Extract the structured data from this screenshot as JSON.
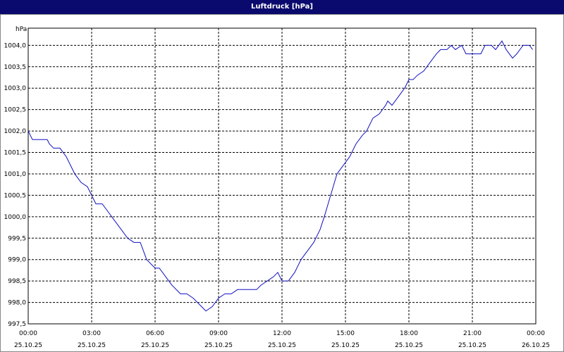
{
  "chart_data": {
    "type": "line",
    "title": "Luftdruck [hPa]",
    "y_label": "hPa",
    "x": [
      0,
      0.2,
      0.5,
      0.9,
      1.0,
      1.2,
      1.5,
      1.8,
      2.0,
      2.2,
      2.5,
      2.8,
      3.0,
      3.2,
      3.5,
      3.8,
      4.1,
      4.4,
      4.7,
      5.0,
      5.3,
      5.6,
      6.0,
      6.2,
      6.5,
      6.8,
      7.2,
      7.5,
      7.8,
      8.0,
      8.2,
      8.4,
      8.7,
      9.0,
      9.3,
      9.6,
      9.9,
      10.2,
      10.5,
      10.8,
      11.0,
      11.3,
      11.6,
      11.8,
      12.0,
      12.3,
      12.6,
      12.9,
      13.2,
      13.5,
      13.8,
      14.0,
      14.3,
      14.6,
      14.9,
      15.2,
      15.5,
      15.8,
      16.0,
      16.3,
      16.6,
      16.9,
      17.0,
      17.2,
      17.5,
      17.8,
      18.0,
      18.2,
      18.4,
      18.7,
      19.0,
      19.3,
      19.5,
      19.8,
      20.0,
      20.2,
      20.5,
      20.7,
      21.0,
      21.4,
      21.6,
      21.9,
      22.1,
      22.4,
      22.6,
      22.9,
      23.1,
      23.4,
      23.7,
      23.85
    ],
    "series": [
      {
        "name": "Luftdruck",
        "color": "#1010c0",
        "values": [
          1002.0,
          1001.8,
          1001.8,
          1001.8,
          1001.7,
          1001.6,
          1001.6,
          1001.4,
          1001.2,
          1001.0,
          1000.8,
          1000.7,
          1000.5,
          1000.3,
          1000.3,
          1000.1,
          999.9,
          999.7,
          999.5,
          999.4,
          999.4,
          999.0,
          998.8,
          998.8,
          998.6,
          998.4,
          998.2,
          998.2,
          998.1,
          998.0,
          997.9,
          997.8,
          997.9,
          998.1,
          998.2,
          998.2,
          998.3,
          998.3,
          998.3,
          998.3,
          998.4,
          998.5,
          998.6,
          998.7,
          998.5,
          998.5,
          998.7,
          999.0,
          999.2,
          999.4,
          999.7,
          1000.0,
          1000.5,
          1001.0,
          1001.2,
          1001.4,
          1001.7,
          1001.9,
          1002.0,
          1002.3,
          1002.4,
          1002.6,
          1002.7,
          1002.6,
          1002.8,
          1003.0,
          1003.2,
          1003.2,
          1003.3,
          1003.4,
          1003.6,
          1003.8,
          1003.9,
          1003.9,
          1004.0,
          1003.9,
          1004.0,
          1003.8,
          1003.8,
          1003.8,
          1004.0,
          1004.0,
          1003.9,
          1004.1,
          1003.9,
          1003.7,
          1003.8,
          1004.0,
          1004.0,
          1003.9
        ]
      }
    ],
    "xlim": [
      0,
      24
    ],
    "xticks": [
      {
        "value": 0,
        "label": "00:00"
      },
      {
        "value": 3,
        "label": "03:00"
      },
      {
        "value": 6,
        "label": "06:00"
      },
      {
        "value": 9,
        "label": "09:00"
      },
      {
        "value": 12,
        "label": "12:00"
      },
      {
        "value": 15,
        "label": "15:00"
      },
      {
        "value": 18,
        "label": "18:00"
      },
      {
        "value": 21,
        "label": "21:00"
      },
      {
        "value": 24,
        "label": "00:00"
      }
    ],
    "xtick_dates": [
      "25.10.25",
      "25.10.25",
      "25.10.25",
      "25.10.25",
      "25.10.25",
      "25.10.25",
      "25.10.25",
      "25.10.25",
      "26.10.25"
    ],
    "ylim": [
      997.5,
      1004.4
    ],
    "yticks": [
      {
        "value": 997.5,
        "label": "997,5"
      },
      {
        "value": 998.0,
        "label": "998,0"
      },
      {
        "value": 998.5,
        "label": "998,5"
      },
      {
        "value": 999.0,
        "label": "999,0"
      },
      {
        "value": 999.5,
        "label": "999,5"
      },
      {
        "value": 1000.0,
        "label": "1000,0"
      },
      {
        "value": 1000.5,
        "label": "1000,5"
      },
      {
        "value": 1001.0,
        "label": "1001,0"
      },
      {
        "value": 1001.5,
        "label": "1001,5"
      },
      {
        "value": 1002.0,
        "label": "1002,0"
      },
      {
        "value": 1002.5,
        "label": "1002,5"
      },
      {
        "value": 1003.0,
        "label": "1003,0"
      },
      {
        "value": 1003.5,
        "label": "1003,5"
      },
      {
        "value": 1004.0,
        "label": "1004,0"
      }
    ],
    "grid": true
  }
}
